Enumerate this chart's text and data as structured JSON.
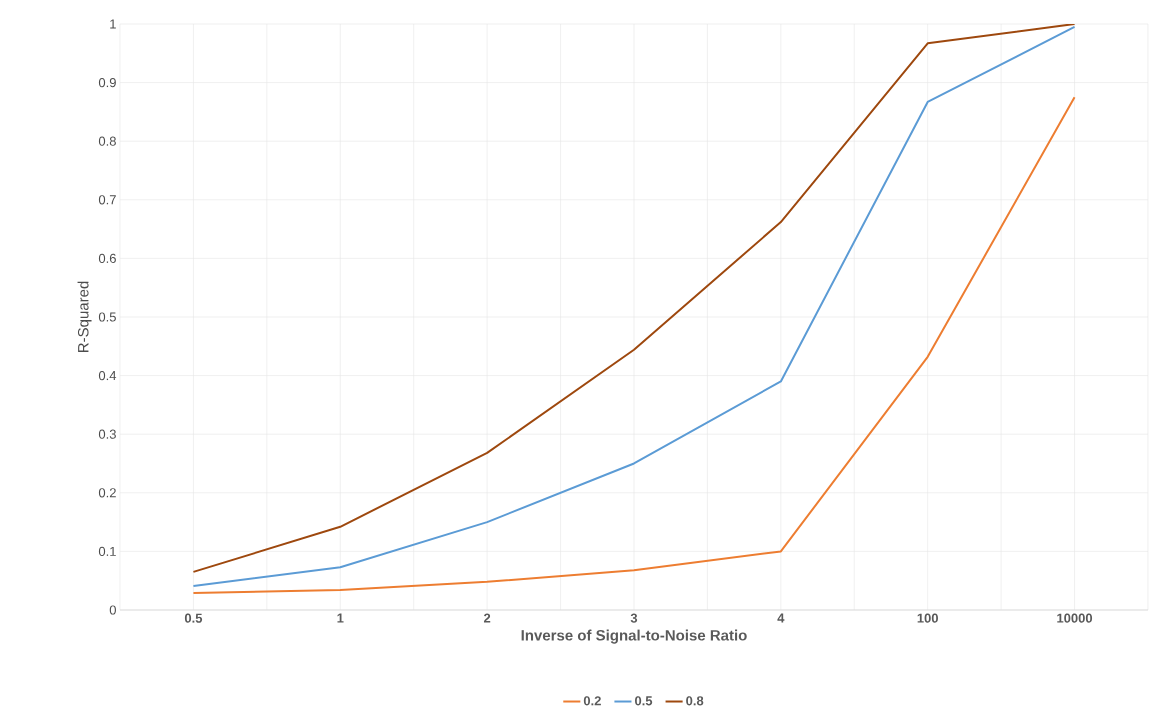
{
  "chart_data": {
    "type": "line",
    "xlabel": "Inverse of Signal-to-Noise Ratio",
    "ylabel": "R-Squared",
    "categories": [
      "0.5",
      "1",
      "2",
      "3",
      "4",
      "100",
      "10000"
    ],
    "series": [
      {
        "name": "0.2",
        "color": "#ed7d31",
        "values": [
          0.029,
          0.034,
          0.048,
          0.068,
          0.1,
          0.432,
          0.875
        ]
      },
      {
        "name": "0.5",
        "color": "#5b9bd5",
        "values": [
          0.041,
          0.073,
          0.15,
          0.25,
          0.39,
          0.867,
          0.995
        ]
      },
      {
        "name": "0.8",
        "color": "#9e480e",
        "values": [
          0.065,
          0.142,
          0.268,
          0.444,
          0.662,
          0.967,
          1.0
        ]
      }
    ],
    "ylim": [
      0,
      1
    ],
    "yticks": [
      0,
      0.1,
      0.2,
      0.3,
      0.4,
      0.5,
      0.6,
      0.7,
      0.8,
      0.9,
      1
    ],
    "grid": true,
    "legend": "bottom",
    "marker": "none",
    "line_style": "solid"
  }
}
